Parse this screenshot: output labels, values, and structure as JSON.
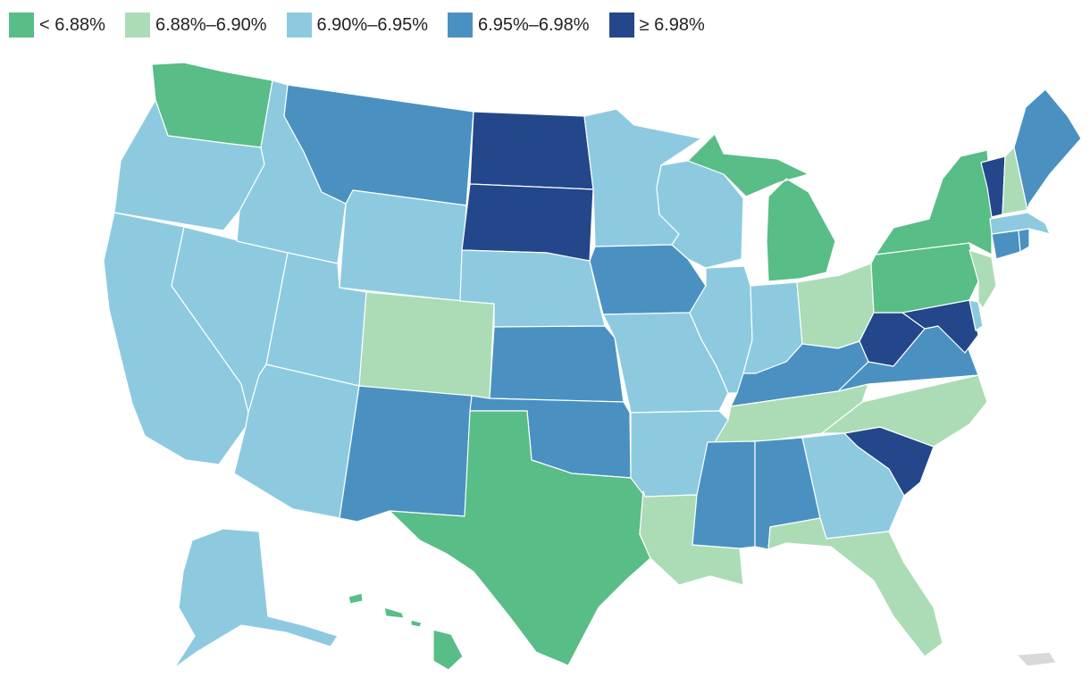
{
  "legend": [
    {
      "label": "< 6.88%",
      "color": "#58bd86"
    },
    {
      "label": "6.88%–6.90%",
      "color": "#abdcb6"
    },
    {
      "label": "6.90%–6.95%",
      "color": "#8dcae0"
    },
    {
      "label": "6.95%–6.98%",
      "color": "#4a91c2"
    },
    {
      "label": "≥ 6.98%",
      "color": "#23478a"
    }
  ],
  "no_data_color": "#d9d9d9",
  "states": {
    "WA": 0,
    "OR": 2,
    "CA": 2,
    "NV": 2,
    "ID": 2,
    "MT": 3,
    "WY": 2,
    "UT": 2,
    "AZ": 2,
    "CO": 1,
    "NM": 3,
    "ND": 4,
    "SD": 4,
    "NE": 2,
    "KS": 3,
    "OK": 3,
    "TX": 0,
    "MN": 2,
    "IA": 3,
    "MO": 2,
    "AR": 2,
    "LA": 1,
    "WI": 2,
    "IL": 2,
    "MI": 0,
    "IN": 2,
    "OH": 1,
    "KY": 3,
    "TN": 1,
    "MS": 3,
    "AL": 3,
    "GA": 2,
    "FL": 1,
    "SC": 4,
    "NC": 1,
    "VA": 3,
    "WV": 4,
    "MD": 4,
    "DE": 2,
    "PA": 0,
    "NJ": 1,
    "NY": 0,
    "CT": 3,
    "RI": 3,
    "MA": 2,
    "VT": 4,
    "NH": 1,
    "ME": 3,
    "AK": 2,
    "HI": 0,
    "PR": null
  }
}
